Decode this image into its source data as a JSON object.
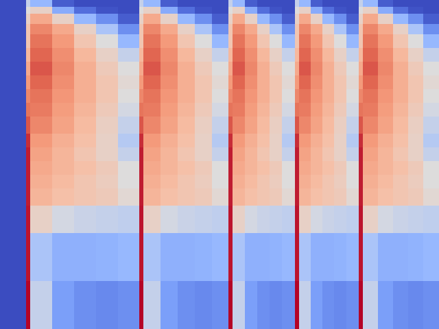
{
  "chart_data": {
    "type": "heatmap",
    "x": [
      0,
      38,
      44,
      76,
      108,
      140,
      172,
      203,
      209,
      234,
      259,
      284,
      309,
      333,
      339,
      357,
      375,
      393,
      411,
      430,
      436,
      453,
      470,
      487,
      505,
      523,
      529,
      551,
      573,
      595,
      617,
      640
    ],
    "y": [
      0,
      10,
      20,
      35,
      50,
      70,
      90,
      110,
      130,
      150,
      170,
      195,
      215,
      235,
      255,
      275,
      300,
      340,
      410,
      480
    ],
    "xlim": [
      0,
      640
    ],
    "ylim": [
      480,
      0
    ],
    "zlim": [
      0,
      1
    ],
    "tick_labels": false,
    "z": [
      [
        0,
        0.45,
        0.35,
        0.05,
        0,
        0,
        0,
        0.45,
        0.35,
        0.05,
        0,
        0,
        0,
        0.45,
        0.35,
        0.05,
        0,
        0,
        0,
        0.45,
        0.35,
        0.05,
        0,
        0,
        0,
        0.45,
        0.35,
        0.05,
        0,
        0,
        0
      ],
      [
        0,
        0.5,
        0.55,
        0.3,
        0.1,
        0.02,
        0,
        0.5,
        0.55,
        0.3,
        0.1,
        0.02,
        0,
        0.5,
        0.55,
        0.3,
        0.1,
        0.02,
        0,
        0.5,
        0.55,
        0.3,
        0.1,
        0.02,
        0,
        0.5,
        0.55,
        0.3,
        0.1,
        0.02,
        0
      ],
      [
        0,
        0.55,
        0.7,
        0.55,
        0.35,
        0.2,
        0.05,
        0.55,
        0.7,
        0.55,
        0.35,
        0.2,
        0.05,
        0.55,
        0.7,
        0.55,
        0.35,
        0.2,
        0.05,
        0.55,
        0.7,
        0.55,
        0.35,
        0.2,
        0.05,
        0.55,
        0.7,
        0.55,
        0.35,
        0.2,
        0.05
      ],
      [
        0,
        0.6,
        0.8,
        0.7,
        0.55,
        0.4,
        0.2,
        0.6,
        0.8,
        0.7,
        0.55,
        0.4,
        0.2,
        0.6,
        0.8,
        0.7,
        0.55,
        0.4,
        0.2,
        0.6,
        0.8,
        0.7,
        0.55,
        0.4,
        0.2,
        0.6,
        0.8,
        0.7,
        0.55,
        0.4,
        0.2
      ],
      [
        0,
        0.6,
        0.85,
        0.75,
        0.6,
        0.5,
        0.35,
        0.6,
        0.85,
        0.75,
        0.6,
        0.5,
        0.35,
        0.6,
        0.85,
        0.75,
        0.6,
        0.5,
        0.35,
        0.6,
        0.85,
        0.75,
        0.6,
        0.5,
        0.35,
        0.6,
        0.85,
        0.75,
        0.6,
        0.5,
        0.35
      ],
      [
        0,
        0.65,
        0.88,
        0.78,
        0.65,
        0.55,
        0.45,
        0.65,
        0.88,
        0.78,
        0.65,
        0.55,
        0.45,
        0.65,
        0.88,
        0.78,
        0.65,
        0.55,
        0.45,
        0.65,
        0.88,
        0.78,
        0.65,
        0.55,
        0.45,
        0.65,
        0.88,
        0.78,
        0.65,
        0.55,
        0.45
      ],
      [
        0,
        0.7,
        0.9,
        0.8,
        0.68,
        0.58,
        0.5,
        0.7,
        0.9,
        0.8,
        0.68,
        0.58,
        0.5,
        0.7,
        0.9,
        0.8,
        0.68,
        0.58,
        0.5,
        0.7,
        0.9,
        0.8,
        0.68,
        0.58,
        0.5,
        0.7,
        0.9,
        0.8,
        0.68,
        0.58,
        0.5
      ],
      [
        0,
        0.75,
        0.88,
        0.78,
        0.68,
        0.6,
        0.52,
        0.75,
        0.88,
        0.78,
        0.68,
        0.6,
        0.52,
        0.75,
        0.88,
        0.78,
        0.68,
        0.6,
        0.52,
        0.75,
        0.88,
        0.78,
        0.68,
        0.6,
        0.52,
        0.75,
        0.88,
        0.78,
        0.68,
        0.6,
        0.52
      ],
      [
        0,
        0.8,
        0.85,
        0.76,
        0.68,
        0.6,
        0.5,
        0.8,
        0.85,
        0.76,
        0.68,
        0.6,
        0.5,
        0.8,
        0.85,
        0.76,
        0.68,
        0.6,
        0.5,
        0.8,
        0.85,
        0.76,
        0.68,
        0.6,
        0.5,
        0.8,
        0.85,
        0.76,
        0.68,
        0.6,
        0.5
      ],
      [
        0,
        0.85,
        0.83,
        0.74,
        0.66,
        0.58,
        0.48,
        0.85,
        0.83,
        0.74,
        0.66,
        0.58,
        0.48,
        0.85,
        0.83,
        0.74,
        0.66,
        0.58,
        0.48,
        0.85,
        0.83,
        0.74,
        0.66,
        0.58,
        0.48,
        0.85,
        0.83,
        0.74,
        0.66,
        0.58,
        0.48
      ],
      [
        0,
        0.9,
        0.8,
        0.72,
        0.64,
        0.56,
        0.45,
        0.9,
        0.8,
        0.72,
        0.64,
        0.56,
        0.45,
        0.9,
        0.8,
        0.72,
        0.64,
        0.56,
        0.45,
        0.9,
        0.8,
        0.72,
        0.64,
        0.56,
        0.45,
        0.9,
        0.8,
        0.72,
        0.64,
        0.56,
        0.45
      ],
      [
        0,
        0.95,
        0.75,
        0.68,
        0.62,
        0.55,
        0.42,
        0.95,
        0.75,
        0.68,
        0.62,
        0.55,
        0.42,
        0.95,
        0.75,
        0.68,
        0.62,
        0.55,
        0.42,
        0.95,
        0.75,
        0.68,
        0.62,
        0.55,
        0.42,
        0.95,
        0.75,
        0.68,
        0.62,
        0.55,
        0.42
      ],
      [
        0,
        0.97,
        0.72,
        0.66,
        0.6,
        0.55,
        0.45,
        0.97,
        0.72,
        0.66,
        0.6,
        0.55,
        0.45,
        0.97,
        0.72,
        0.66,
        0.6,
        0.55,
        0.45,
        0.97,
        0.72,
        0.66,
        0.6,
        0.55,
        0.45,
        0.97,
        0.72,
        0.66,
        0.6,
        0.55,
        0.45
      ],
      [
        0,
        0.97,
        0.7,
        0.66,
        0.62,
        0.58,
        0.5,
        0.97,
        0.7,
        0.66,
        0.62,
        0.58,
        0.5,
        0.97,
        0.7,
        0.66,
        0.62,
        0.58,
        0.5,
        0.97,
        0.7,
        0.66,
        0.62,
        0.58,
        0.5,
        0.97,
        0.7,
        0.66,
        0.62,
        0.58,
        0.5
      ],
      [
        0,
        0.97,
        0.68,
        0.64,
        0.6,
        0.57,
        0.5,
        0.97,
        0.68,
        0.64,
        0.6,
        0.57,
        0.5,
        0.97,
        0.68,
        0.64,
        0.6,
        0.57,
        0.5,
        0.97,
        0.68,
        0.64,
        0.6,
        0.57,
        0.5,
        0.97,
        0.68,
        0.64,
        0.6,
        0.57,
        0.5
      ],
      [
        0,
        0.97,
        0.66,
        0.62,
        0.6,
        0.58,
        0.52,
        0.97,
        0.66,
        0.62,
        0.6,
        0.58,
        0.52,
        0.97,
        0.66,
        0.62,
        0.6,
        0.58,
        0.52,
        0.97,
        0.66,
        0.62,
        0.6,
        0.58,
        0.52,
        0.97,
        0.66,
        0.62,
        0.6,
        0.58,
        0.52
      ],
      [
        0,
        0.98,
        0.55,
        0.48,
        0.46,
        0.45,
        0.44,
        0.98,
        0.55,
        0.48,
        0.46,
        0.45,
        0.44,
        0.98,
        0.55,
        0.48,
        0.46,
        0.45,
        0.44,
        0.98,
        0.55,
        0.48,
        0.46,
        0.45,
        0.44,
        0.98,
        0.55,
        0.48,
        0.46,
        0.45,
        0.44
      ],
      [
        0,
        0.98,
        0.4,
        0.32,
        0.32,
        0.33,
        0.35,
        0.98,
        0.4,
        0.32,
        0.32,
        0.33,
        0.35,
        0.98,
        0.4,
        0.32,
        0.32,
        0.33,
        0.35,
        0.98,
        0.4,
        0.32,
        0.32,
        0.33,
        0.35,
        0.98,
        0.4,
        0.32,
        0.32,
        0.33,
        0.35
      ],
      [
        0,
        1,
        0.45,
        0.25,
        0.2,
        0.18,
        0.2,
        1,
        0.45,
        0.25,
        0.2,
        0.18,
        0.2,
        1,
        0.45,
        0.25,
        0.2,
        0.18,
        0.2,
        1,
        0.45,
        0.25,
        0.2,
        0.18,
        0.2,
        1,
        0.45,
        0.25,
        0.2,
        0.18,
        0.2
      ]
    ]
  }
}
